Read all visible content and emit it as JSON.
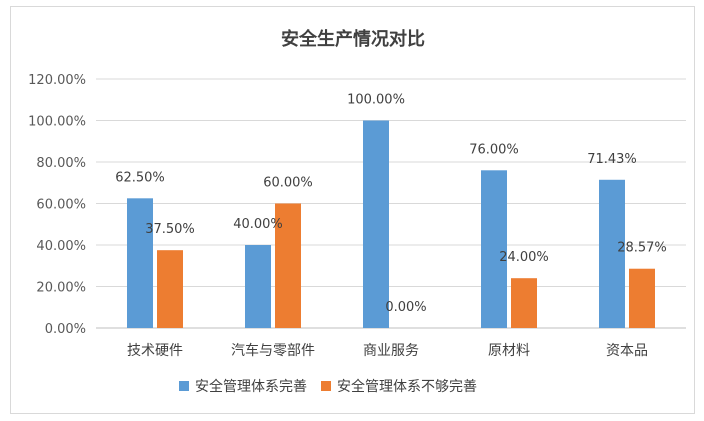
{
  "chart_data": {
    "type": "bar",
    "title": "安全生产情况对比",
    "categories": [
      "技术硬件",
      "汽车与零部件",
      "商业服务",
      "原材料",
      "资本品"
    ],
    "series": [
      {
        "name": "安全管理体系完善",
        "values": [
          62.5,
          40.0,
          100.0,
          76.0,
          71.43
        ],
        "labels": [
          "62.50%",
          "40.00%",
          "100.00%",
          "76.00%",
          "71.43%"
        ]
      },
      {
        "name": "安全管理体系不够完善",
        "values": [
          37.5,
          60.0,
          0.0,
          24.0,
          28.57
        ],
        "labels": [
          "37.50%",
          "60.00%",
          "0.00%",
          "24.00%",
          "28.57%"
        ]
      }
    ],
    "y_ticks": [
      "0.00%",
      "20.00%",
      "40.00%",
      "60.00%",
      "80.00%",
      "100.00%",
      "120.00%"
    ],
    "ylim": [
      0,
      120
    ],
    "grid": true,
    "legend_position": "bottom",
    "colors": [
      "#5b9bd5",
      "#ed7d31"
    ]
  }
}
